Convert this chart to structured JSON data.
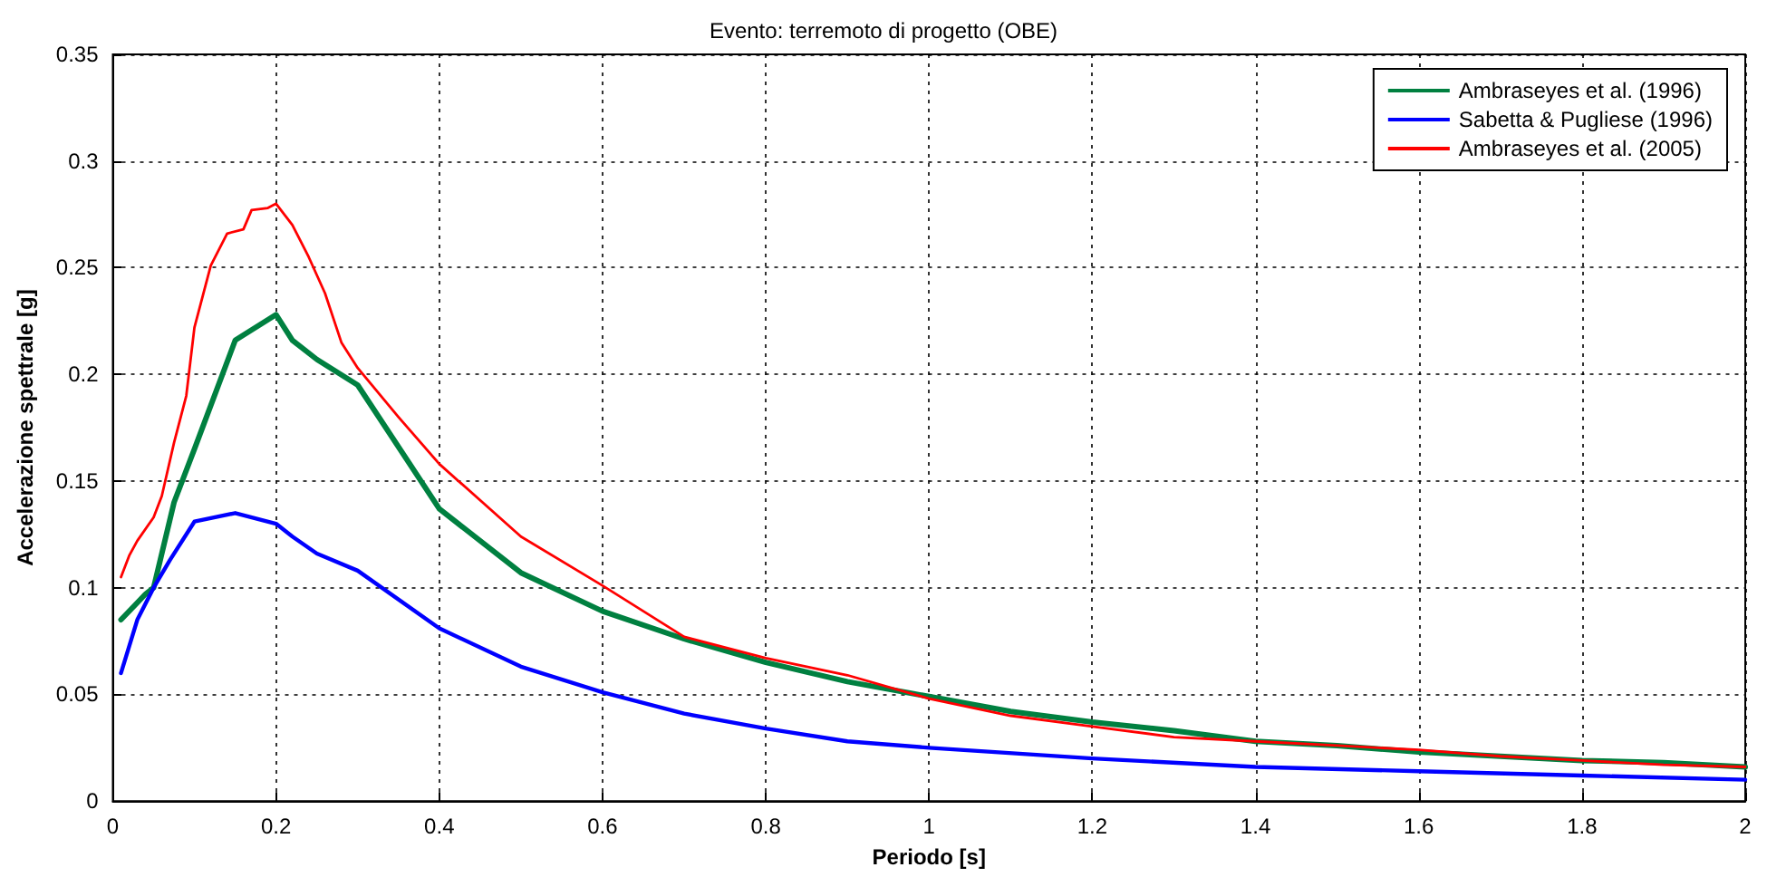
{
  "chart_data": {
    "type": "line",
    "title": "Evento: terremoto di progetto (OBE)",
    "xlabel": "Periodo [s]",
    "ylabel": "Accelerazione spettrale [g]",
    "xlim": [
      0,
      2
    ],
    "xticks": [
      0,
      0.2,
      0.4,
      0.6,
      0.8,
      1,
      1.2,
      1.4,
      1.6,
      1.8,
      2
    ],
    "ylim": [
      0,
      0.35
    ],
    "yticks": [
      0,
      0.05,
      0.1,
      0.15,
      0.2,
      0.25,
      0.3,
      0.35
    ],
    "grid": true,
    "legend": "top right",
    "marker": "none",
    "line_style": "solid",
    "series": [
      {
        "name": "Ambraseyes et al. (1996)",
        "color": "#008040",
        "x": [
          0.01,
          0.03,
          0.04,
          0.05,
          0.075,
          0.1,
          0.15,
          0.2,
          0.22,
          0.25,
          0.3,
          0.4,
          0.5,
          0.6,
          0.7,
          0.8,
          0.9,
          1.0,
          1.1,
          1.2,
          1.3,
          1.4,
          1.5,
          1.6,
          1.7,
          1.8,
          1.9,
          2.0
        ],
        "values": [
          0.085,
          0.093,
          0.097,
          0.1,
          0.14,
          0.165,
          0.216,
          0.228,
          0.216,
          0.207,
          0.195,
          0.137,
          0.107,
          0.089,
          0.076,
          0.065,
          0.056,
          0.049,
          0.042,
          0.037,
          0.033,
          0.028,
          0.026,
          0.023,
          0.021,
          0.019,
          0.018,
          0.016
        ]
      },
      {
        "name": "Sabetta & Pugliese (1996)",
        "color": "#0000ff",
        "x": [
          0.01,
          0.03,
          0.05,
          0.07,
          0.1,
          0.15,
          0.2,
          0.22,
          0.25,
          0.3,
          0.4,
          0.5,
          0.6,
          0.7,
          0.8,
          0.9,
          1.0,
          1.2,
          1.4,
          1.6,
          1.8,
          2.0
        ],
        "values": [
          0.06,
          0.085,
          0.1,
          0.113,
          0.131,
          0.135,
          0.13,
          0.124,
          0.116,
          0.108,
          0.081,
          0.063,
          0.051,
          0.041,
          0.034,
          0.028,
          0.025,
          0.02,
          0.016,
          0.014,
          0.012,
          0.01
        ]
      },
      {
        "name": "Ambraseyes et al. (2005)",
        "color": "#ff0000",
        "x": [
          0.01,
          0.02,
          0.03,
          0.05,
          0.06,
          0.075,
          0.09,
          0.1,
          0.12,
          0.14,
          0.16,
          0.17,
          0.19,
          0.2,
          0.22,
          0.24,
          0.26,
          0.28,
          0.3,
          0.35,
          0.4,
          0.5,
          0.6,
          0.7,
          0.8,
          0.9,
          1.0,
          1.1,
          1.2,
          1.3,
          1.4,
          1.5,
          1.6,
          1.7,
          1.8,
          1.9,
          2.0
        ],
        "values": [
          0.105,
          0.115,
          0.122,
          0.133,
          0.143,
          0.168,
          0.19,
          0.222,
          0.251,
          0.266,
          0.268,
          0.277,
          0.278,
          0.28,
          0.27,
          0.255,
          0.238,
          0.215,
          0.203,
          0.18,
          0.158,
          0.124,
          0.101,
          0.077,
          0.067,
          0.059,
          0.048,
          0.04,
          0.035,
          0.03,
          0.028,
          0.026,
          0.024,
          0.021,
          0.019,
          0.017,
          0.016
        ]
      }
    ]
  }
}
